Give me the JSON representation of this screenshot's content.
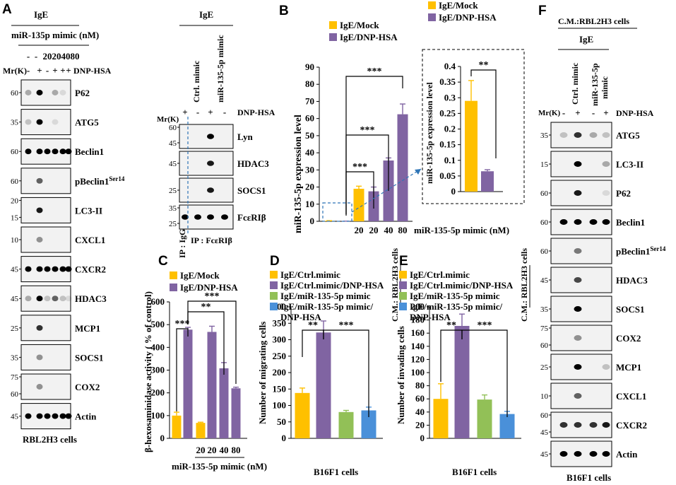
{
  "colors": {
    "mock": "#FFC000",
    "dnp": "#8064A2",
    "green": "#92C057",
    "blue": "#4A90D9",
    "dashblue": "#2E75B6"
  },
  "panel_a": {
    "label": "A",
    "ige": "IgE",
    "mimic": "miR-135p mimic (nM)",
    "conc": [
      "-",
      "-",
      "20",
      "20",
      "40",
      "80"
    ],
    "mr": "Mr(K)",
    "dnp_signs": [
      "-",
      "+",
      "-",
      "+",
      "+",
      "+"
    ],
    "dnp_label": "DNP-HSA",
    "blots": [
      {
        "name": "P62",
        "mw": [
          "60"
        ]
      },
      {
        "name": "ATG5",
        "mw": [
          "35"
        ]
      },
      {
        "name": "Beclin1",
        "mw": [
          "60"
        ]
      },
      {
        "name": "pBeclin1",
        "sup": "Ser14",
        "mw": [
          "60"
        ]
      },
      {
        "name": "LC3-II",
        "mw": [
          "20",
          "15"
        ]
      },
      {
        "name": "CXCL1",
        "mw": [
          "10"
        ]
      },
      {
        "name": "CXCR2",
        "mw": [
          "45"
        ]
      },
      {
        "name": "HDAC3",
        "mw": [
          "45"
        ]
      },
      {
        "name": "MCP1",
        "mw": [
          "25"
        ]
      },
      {
        "name": "SOCS1",
        "mw": [
          "35"
        ]
      },
      {
        "name": "COX2",
        "mw": [
          "75",
          "60"
        ]
      },
      {
        "name": "Actin",
        "mw": [
          "45"
        ]
      }
    ],
    "footer": "RBL2H3 cells"
  },
  "panel_ip": {
    "ige": "IgE",
    "col1": "Ctrl. mimic",
    "col2": "miR-135-5p mimic",
    "mr": "Mr(K)",
    "dnp_signs": [
      "+",
      "-",
      "+",
      "-"
    ],
    "dnp_label": "DNP-HSA",
    "blots": [
      {
        "name": "Lyn",
        "mw": [
          "60",
          "45"
        ]
      },
      {
        "name": "HDAC3",
        "mw": [
          "45"
        ]
      },
      {
        "name": "SOCS1",
        "mw": [
          "25"
        ]
      },
      {
        "name": "FcεRIβ",
        "mw": [
          "35",
          "25"
        ]
      }
    ],
    "igg": "IP : IgG",
    "ip": "IP : FcεRIβ"
  },
  "panel_b": {
    "label": "B",
    "legend": [
      "IgE/Mock",
      "IgE/DNP-HSA"
    ],
    "ylabel": "miR-135-5p expression level",
    "xlabel": "miR-135-5p mimic (nM)",
    "sig": [
      "***",
      "***",
      "***"
    ],
    "inset_ylabel": "miR-135-5p expression level",
    "inset_sig": "**"
  },
  "panel_c": {
    "label": "C",
    "legend": [
      "IgE/Mock",
      "IgE/DNP-HSA"
    ],
    "ylabel": "β-hexosaminidase activity ( % of control)",
    "xlabel": "miR-135-5p mimic  (nM)",
    "sig": [
      "***",
      "**",
      "***"
    ]
  },
  "panel_d": {
    "label": "D",
    "legend": [
      "IgE/Ctrl.mimic",
      "IgE/Ctrl.mimic/DNP-HSA",
      "IgE/miR-135-5p mimic",
      "IgE/miR-135-5p mimic/",
      "DNP-HSA"
    ],
    "side": "C.M.: RBL2H3 cells",
    "ylabel": "Number of migrating cells",
    "footer": "B16F1 cells",
    "sig": [
      "**",
      "***"
    ]
  },
  "panel_e": {
    "label": "E",
    "legend": [
      "IgE/Ctrl.mimic",
      "IgE/Ctrl.mimic/DNP-HSA",
      "IgE/miR-135-5p mimic",
      "IgE/miR-135-5p mimic/",
      "DNP-HSA"
    ],
    "side": "C.M.: RBL2H3 cells",
    "ylabel": "Number of invading cells",
    "footer": "B16F1 cells",
    "sig": [
      "**",
      "***"
    ]
  },
  "panel_f": {
    "label": "F",
    "title": "C.M.:RBL2H3 cells",
    "ige": "IgE",
    "col1": "Ctrl. mimic",
    "col2a": "miR-135-5p",
    "col2b": "mimic",
    "mr": "Mr(K)",
    "dnp_signs": [
      "-",
      "+",
      "-",
      "+"
    ],
    "dnp_label": "DNP-HSA",
    "blots": [
      {
        "name": "ATG5",
        "mw": [
          "35"
        ]
      },
      {
        "name": "LC3-II",
        "mw": [
          "15"
        ]
      },
      {
        "name": "P62",
        "mw": [
          "60"
        ]
      },
      {
        "name": "Beclin1",
        "mw": [
          "60"
        ]
      },
      {
        "name": "pBeclin1",
        "sup": "Ser14",
        "mw": [
          "60"
        ]
      },
      {
        "name": "HDAC3",
        "mw": [
          "45"
        ]
      },
      {
        "name": "SOCS1",
        "mw": [
          "35"
        ]
      },
      {
        "name": "COX2",
        "mw": [
          "75",
          "60"
        ]
      },
      {
        "name": "MCP1",
        "mw": [
          "25"
        ]
      },
      {
        "name": "CXCL1",
        "mw": [
          "10"
        ]
      },
      {
        "name": "CXCR2",
        "mw": [
          "60",
          "45"
        ]
      },
      {
        "name": "Actin",
        "mw": [
          "45"
        ]
      }
    ],
    "footer": "B16F1 cells"
  },
  "chart_data": [
    {
      "id": "B",
      "type": "bar",
      "title": "",
      "ylabel": "miR-135-5p expression level",
      "xlabel": "miR-135-5p mimic (nM)",
      "ylim": [
        0,
        90
      ],
      "yticks": [
        0,
        10,
        20,
        30,
        40,
        50,
        60,
        70,
        80,
        90
      ],
      "categories": [
        "",
        "",
        "20",
        "20",
        "40",
        "80"
      ],
      "series": [
        {
          "name": "IgE/Mock",
          "values": [
            0.29,
            null,
            19,
            null,
            null,
            null
          ]
        },
        {
          "name": "IgE/DNP-HSA",
          "values": [
            null,
            0.07,
            null,
            17.5,
            35.5,
            62.5
          ]
        }
      ],
      "errors": [
        0.07,
        0.005,
        1.5,
        2.5,
        1.5,
        6
      ]
    },
    {
      "id": "B-inset",
      "type": "bar",
      "ylabel": "miR-135-5p expression level",
      "ylim": [
        0,
        0.4
      ],
      "yticks": [
        0,
        0.05,
        0.1,
        0.15,
        0.2,
        0.25,
        0.3,
        0.35,
        0.4
      ],
      "categories": [
        "IgE/Mock",
        "IgE/DNP-HSA"
      ],
      "values": [
        0.29,
        0.065
      ],
      "errors": [
        0.065,
        0.005
      ]
    },
    {
      "id": "C",
      "type": "bar",
      "ylabel": "β-hexosaminidase activity ( % of control)",
      "xlabel": "miR-135-5p mimic  (nM)",
      "ylim": [
        0,
        600
      ],
      "yticks": [
        0,
        100,
        200,
        300,
        400,
        500,
        600
      ],
      "categories": [
        "",
        "",
        "20",
        "20",
        "40",
        "80"
      ],
      "series": [
        {
          "name": "IgE/Mock",
          "values": [
            100,
            null,
            68,
            null,
            null,
            null
          ]
        },
        {
          "name": "IgE/DNP-HSA",
          "values": [
            null,
            478,
            null,
            468,
            308,
            220
          ]
        }
      ],
      "errors": [
        15,
        10,
        3,
        25,
        25,
        5
      ]
    },
    {
      "id": "D",
      "type": "bar",
      "ylabel": "Number of migrating cells",
      "xlabel": "B16F1 cells",
      "ylim": [
        0,
        400
      ],
      "yticks": [
        0,
        50,
        100,
        150,
        200,
        250,
        300,
        350,
        400
      ],
      "categories": [
        "IgE/Ctrl.mimic",
        "IgE/Ctrl.mimic/DNP-HSA",
        "IgE/miR-135-5p mimic",
        "IgE/miR-135-5p mimic/DNP-HSA"
      ],
      "values": [
        138,
        322,
        80,
        85
      ],
      "errors": [
        15,
        35,
        5,
        10
      ]
    },
    {
      "id": "E",
      "type": "bar",
      "ylabel": "Number of invading cells",
      "xlabel": "B16F1 cells",
      "ylim": [
        0,
        200
      ],
      "yticks": [
        0,
        20,
        40,
        60,
        80,
        100,
        120,
        140,
        160,
        180,
        200
      ],
      "categories": [
        "IgE/Ctrl.mimic",
        "IgE/Ctrl.mimic/DNP-HSA",
        "IgE/miR-135-5p mimic",
        "IgE/miR-135-5p mimic/DNP-HSA"
      ],
      "values": [
        60,
        171,
        59,
        37
      ],
      "errors": [
        23,
        18,
        7,
        4
      ]
    }
  ]
}
